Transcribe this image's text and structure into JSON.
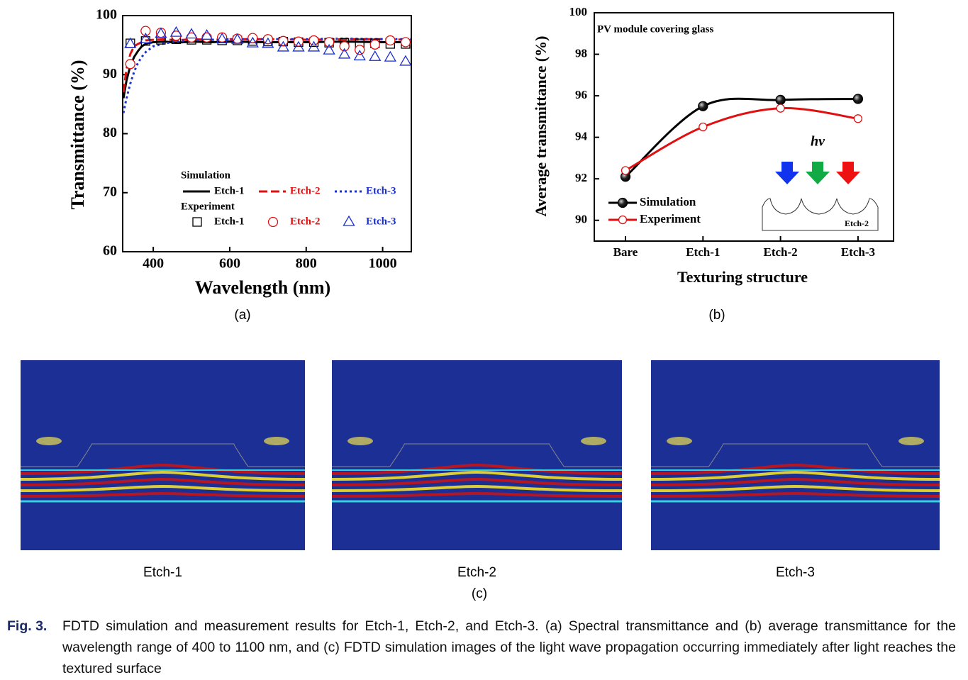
{
  "chart_data": [
    {
      "type": "line",
      "panel_label": "(a)",
      "x_label": "Wavelength (nm)",
      "y_label": "Transmittance (%)",
      "xlim": [
        320,
        1075
      ],
      "xticks": [
        400,
        600,
        800,
        1000
      ],
      "ylim": [
        60,
        100
      ],
      "yticks": [
        60,
        70,
        80,
        90,
        100
      ],
      "series_groups": [
        {
          "name": "Simulation",
          "series": [
            {
              "name": "Etch-1",
              "color": "#000000",
              "style": "solid",
              "x": [
                322,
                330,
                340,
                350,
                360,
                370,
                380,
                400,
                430,
                460,
                500,
                550,
                600,
                700,
                800,
                900,
                1000,
                1075
              ],
              "values": [
                86,
                89,
                91.5,
                93,
                94,
                94.8,
                95.2,
                95.5,
                95.6,
                95.4,
                95.6,
                95.5,
                95.6,
                95.5,
                95.5,
                95.6,
                95.5,
                95.5
              ]
            },
            {
              "name": "Etch-2",
              "color": "#e01010",
              "style": "dashed",
              "x": [
                322,
                330,
                340,
                350,
                360,
                370,
                380,
                400,
                430,
                460,
                500,
                550,
                600,
                700,
                800,
                900,
                1000,
                1075
              ],
              "values": [
                87,
                91,
                93.5,
                94.8,
                95.2,
                95.5,
                95.8,
                95.9,
                96,
                95.8,
                96,
                95.9,
                96,
                96,
                95.9,
                96,
                96,
                95.9
              ]
            },
            {
              "name": "Etch-3",
              "color": "#1a2fd0",
              "style": "dotted",
              "x": [
                322,
                330,
                340,
                350,
                360,
                370,
                380,
                400,
                430,
                460,
                500,
                550,
                600,
                700,
                800,
                900,
                1000,
                1075
              ],
              "values": [
                83.5,
                86,
                88.5,
                90.5,
                92,
                93,
                93.8,
                94.8,
                95.3,
                95.6,
                95.8,
                95.9,
                96,
                96,
                96,
                96.1,
                96,
                96
              ]
            }
          ]
        },
        {
          "name": "Experiment",
          "series": [
            {
              "name": "Etch-1",
              "color": "#000000",
              "marker": "square",
              "x": [
                340,
                380,
                420,
                460,
                500,
                540,
                580,
                620,
                660,
                700,
                740,
                780,
                820,
                860,
                900,
                940,
                980,
                1020,
                1060
              ],
              "values": [
                95.3,
                95.7,
                95.9,
                96.0,
                95.9,
                95.9,
                95.8,
                95.8,
                95.7,
                95.6,
                95.6,
                95.5,
                95.5,
                95.4,
                95.4,
                95.3,
                95.3,
                95.2,
                95.2
              ]
            },
            {
              "name": "Etch-2",
              "color": "#e01010",
              "marker": "circle",
              "x": [
                340,
                380,
                420,
                460,
                500,
                540,
                580,
                620,
                660,
                700,
                740,
                780,
                820,
                860,
                900,
                940,
                980,
                1020,
                1060
              ],
              "values": [
                91.8,
                97.4,
                97.1,
                96.6,
                96.3,
                96.3,
                96.3,
                96.1,
                96.2,
                96.0,
                95.7,
                95.6,
                95.8,
                95.5,
                94.8,
                94.2,
                95.1,
                95.8,
                95.5
              ]
            },
            {
              "name": "Etch-3",
              "color": "#1a2fd0",
              "marker": "triangle",
              "x": [
                340,
                380,
                420,
                460,
                500,
                540,
                580,
                620,
                660,
                700,
                740,
                780,
                820,
                860,
                900,
                940,
                980,
                1020,
                1060
              ],
              "values": [
                95.2,
                96.0,
                96.9,
                97.1,
                96.8,
                96.6,
                96.0,
                95.9,
                95.3,
                95.2,
                94.6,
                94.6,
                94.6,
                94.1,
                93.4,
                93.1,
                93.0,
                92.9,
                92.2
              ]
            }
          ]
        }
      ]
    },
    {
      "type": "line",
      "panel_label": "(b)",
      "x_label": "Texturing structure",
      "y_label": "Average transmittance (%)",
      "annotation": "PV module covering glass",
      "light_label": "hv",
      "inset_label": "Etch-2",
      "categories": [
        "Bare",
        "Etch-1",
        "Etch-2",
        "Etch-3"
      ],
      "ylim": [
        89,
        100
      ],
      "yticks": [
        90,
        92,
        94,
        96,
        98,
        100
      ],
      "series": [
        {
          "name": "Simulation",
          "color": "#000000",
          "marker": "filled",
          "values": [
            92.1,
            95.5,
            95.8,
            95.85
          ]
        },
        {
          "name": "Experiment",
          "color": "#e01010",
          "marker": "open",
          "values": [
            92.4,
            94.5,
            95.4,
            94.9
          ]
        }
      ]
    }
  ],
  "panel_c": {
    "label": "(c)",
    "images": [
      "Etch-1",
      "Etch-2",
      "Etch-3"
    ]
  },
  "caption": {
    "label": "Fig. 3.",
    "text": "FDTD simulation and measurement results for Etch-1, Etch-2, and Etch-3. (a) Spectral transmittance and (b) average transmittance for the wavelength range of 400 to 1100 nm, and (c) FDTD simulation images of the light wave propagation occurring immediately after light reaches the textured surface"
  }
}
